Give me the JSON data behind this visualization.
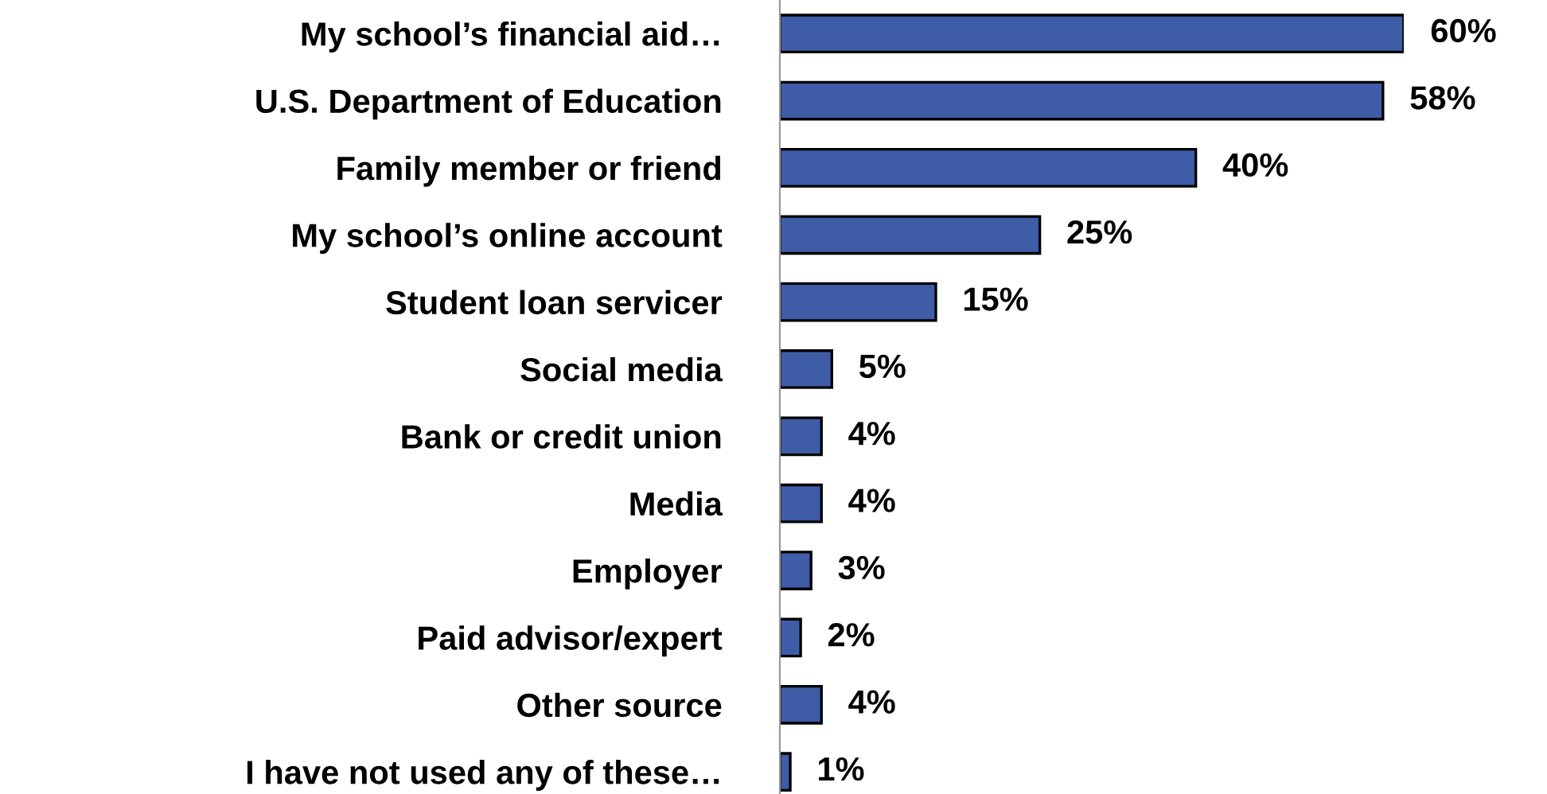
{
  "chart_data": {
    "type": "bar",
    "orientation": "horizontal",
    "categories": [
      "My school’s financial aid…",
      "U.S. Department of Education",
      "Family member or friend",
      "My school’s online account",
      "Student loan servicer",
      "Social media",
      "Bank or credit union",
      "Media",
      "Employer",
      "Paid advisor/expert",
      "Other source",
      "I have not used any of these…"
    ],
    "values": [
      60,
      58,
      40,
      25,
      15,
      5,
      4,
      4,
      3,
      2,
      4,
      1
    ],
    "value_labels": [
      "60%",
      "58%",
      "40%",
      "25%",
      "15%",
      "5%",
      "4%",
      "4%",
      "3%",
      "2%",
      "4%",
      "1%"
    ],
    "color": "#3f5ca6",
    "grid": false,
    "legend": false
  }
}
